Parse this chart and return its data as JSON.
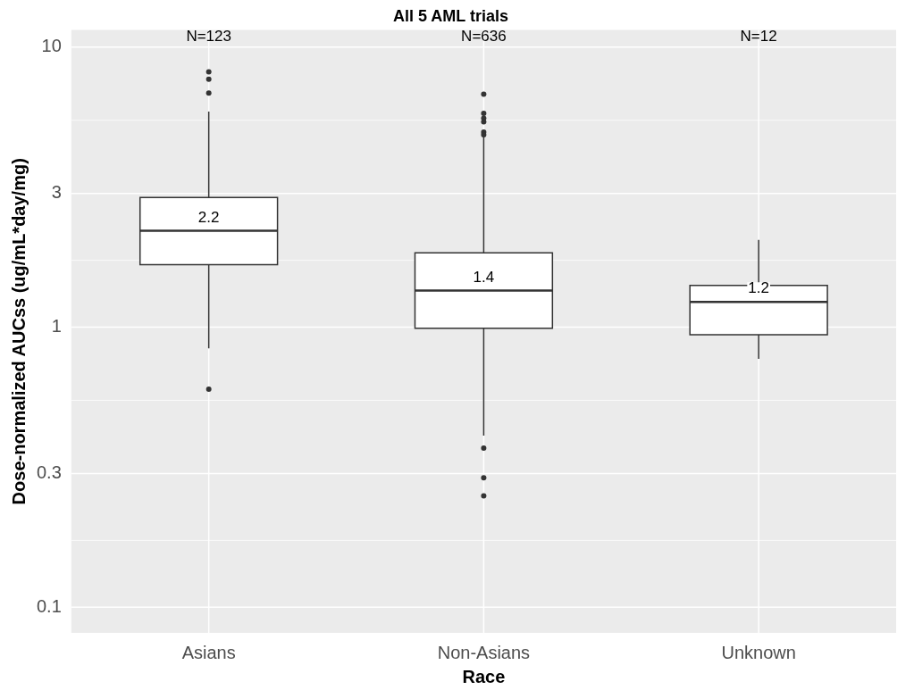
{
  "chart_data": {
    "type": "box",
    "title": "All 5 AML trials",
    "xlabel": "Race",
    "ylabel": "Dose-normalized AUCss (ug/mL*day/mg)",
    "categories": [
      "Asians",
      "Non-Asians",
      "Unknown"
    ],
    "boxes": [
      {
        "low": 0.84,
        "q1": 1.67,
        "median": 2.21,
        "q3": 2.9,
        "high": 5.88,
        "outliers": [
          8.15,
          7.67,
          6.85,
          0.6
        ]
      },
      {
        "low": 0.41,
        "q1": 0.99,
        "median": 1.35,
        "q3": 1.84,
        "high": 4.79,
        "outliers": [
          6.79,
          5.79,
          5.57,
          5.41,
          4.97,
          4.86,
          0.37,
          0.29,
          0.25
        ]
      },
      {
        "low": 0.77,
        "q1": 0.94,
        "median": 1.23,
        "q3": 1.41,
        "high": 2.05
      }
    ],
    "color": "#ffffff",
    "log": true,
    "ylim": [
      0.081,
      11.5
    ],
    "yticks": [
      0.1,
      0.3,
      1,
      3,
      10
    ],
    "grid": true,
    "legend": false,
    "annotations": [
      "N=123",
      "N=636",
      "N=12",
      {
        "text": "2.2",
        "x": "Asians",
        "y": 2.21
      },
      {
        "text": "1.4",
        "x": "Non-Asians",
        "y": 1.35
      },
      {
        "text": "1.2",
        "x": "Unknown",
        "y": 1.23
      }
    ]
  }
}
